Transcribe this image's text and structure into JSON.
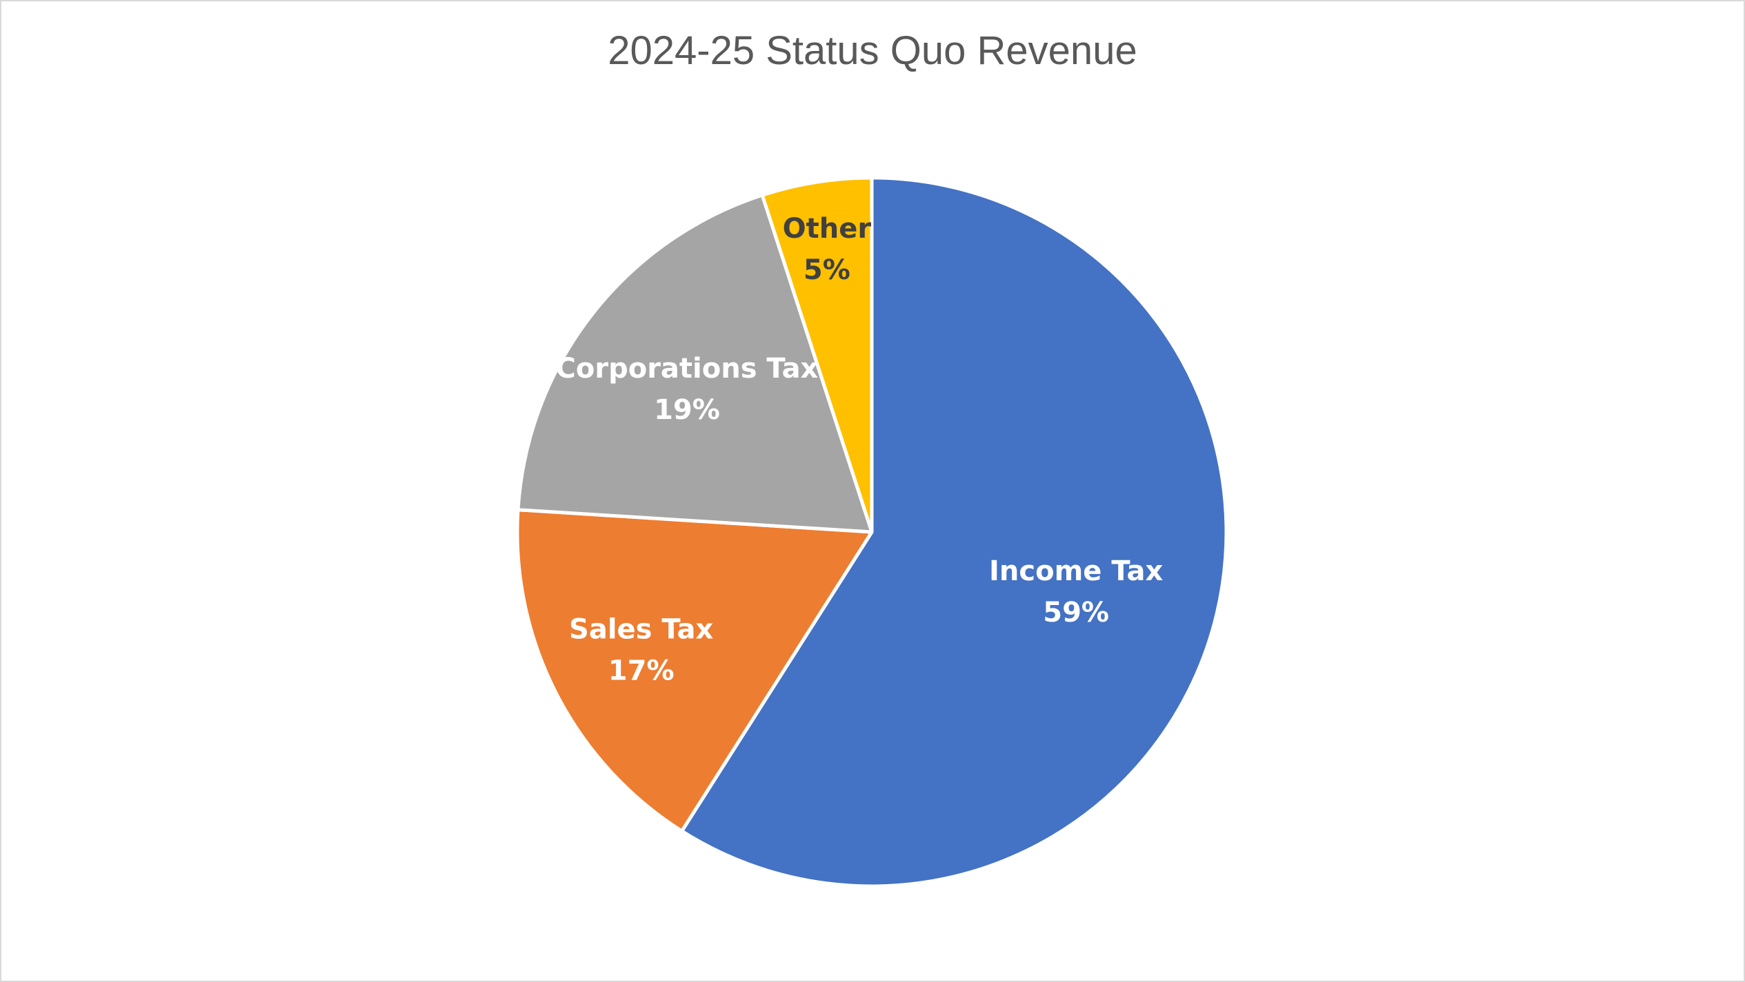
{
  "chart_data": {
    "type": "pie",
    "title": "2024-25 Status Quo Revenue",
    "slices": [
      {
        "label": "Income Tax",
        "value": 59,
        "value_label": "59%",
        "color": "#4472C4",
        "text_color": "#FFFFFF"
      },
      {
        "label": "Sales Tax",
        "value": 17,
        "value_label": "17%",
        "color": "#ED7D31",
        "text_color": "#FFFFFF"
      },
      {
        "label": "Corporations Tax",
        "value": 19,
        "value_label": "19%",
        "color": "#A5A5A5",
        "text_color": "#FFFFFF"
      },
      {
        "label": "Other",
        "value": 5,
        "value_label": "5%",
        "color": "#FFC000",
        "text_color": "#404040"
      }
    ],
    "start_angle": "12 o'clock",
    "direction": "clockwise",
    "legend": "none"
  }
}
